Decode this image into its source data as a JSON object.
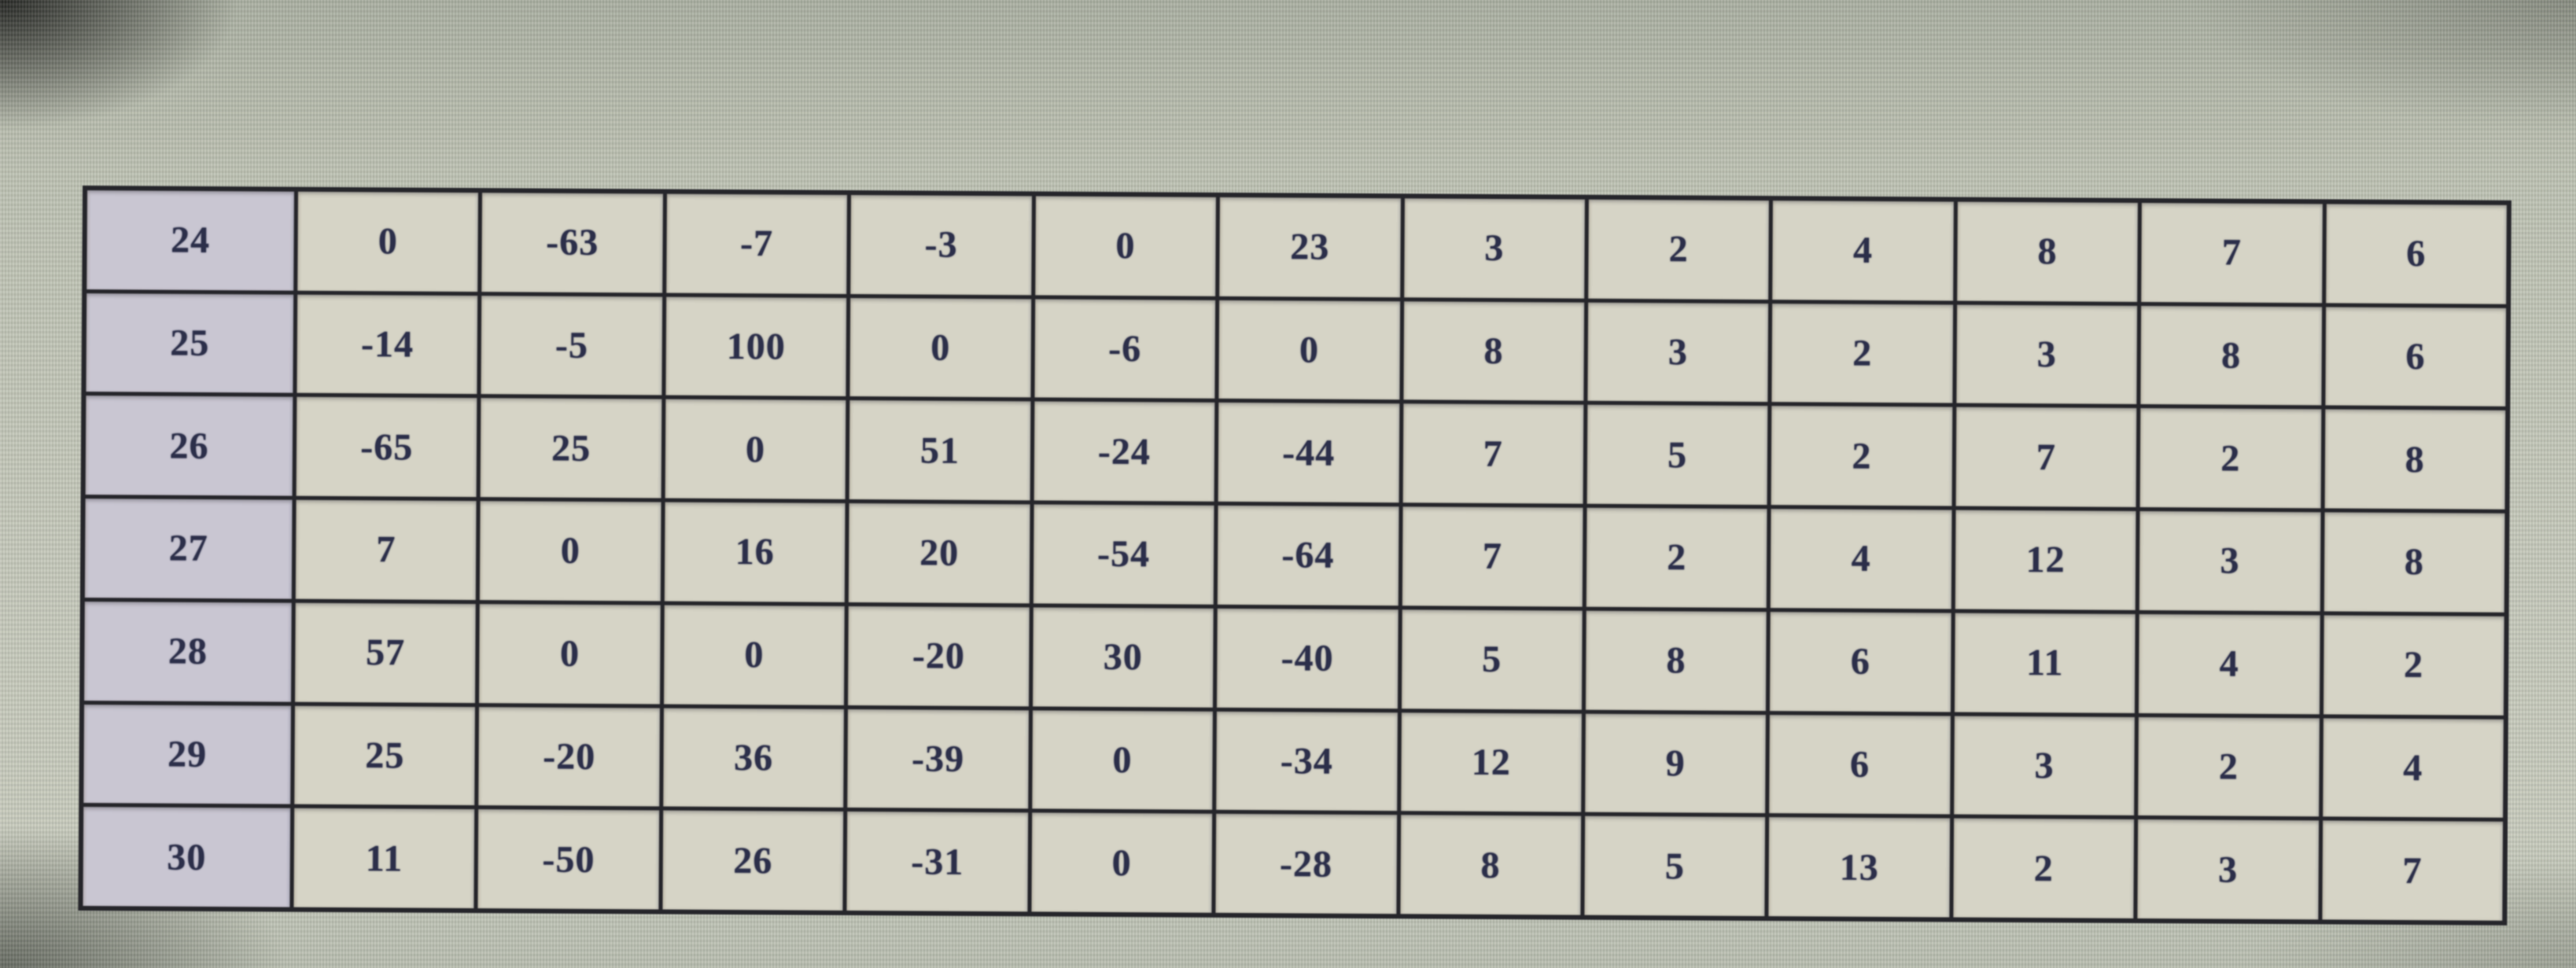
{
  "chart_data": {
    "type": "table",
    "title": "",
    "legend": [],
    "grid": true,
    "columns_count": 13,
    "row_headers": [
      "24",
      "25",
      "26",
      "27",
      "28",
      "29",
      "30"
    ],
    "rows": [
      [
        0,
        -63,
        -7,
        -3,
        0,
        23,
        3,
        2,
        4,
        8,
        7,
        6
      ],
      [
        -14,
        -5,
        100,
        0,
        -6,
        0,
        8,
        3,
        2,
        3,
        8,
        6
      ],
      [
        -65,
        25,
        0,
        51,
        -24,
        -44,
        7,
        5,
        2,
        7,
        2,
        8
      ],
      [
        7,
        0,
        16,
        20,
        -54,
        -64,
        7,
        2,
        4,
        12,
        3,
        8
      ],
      [
        57,
        0,
        0,
        -20,
        30,
        -40,
        5,
        8,
        6,
        11,
        4,
        2
      ],
      [
        25,
        -20,
        36,
        -39,
        0,
        -34,
        12,
        9,
        6,
        3,
        2,
        4
      ],
      [
        11,
        -50,
        26,
        -31,
        0,
        -28,
        8,
        5,
        13,
        2,
        3,
        7
      ]
    ]
  },
  "colors": {
    "photo_bg": "#b2b7a8",
    "cell_bg": "#d6d4c6",
    "row_header_bg": "#c9c6d2",
    "border": "#26262b",
    "text": "#2c2f4a"
  }
}
